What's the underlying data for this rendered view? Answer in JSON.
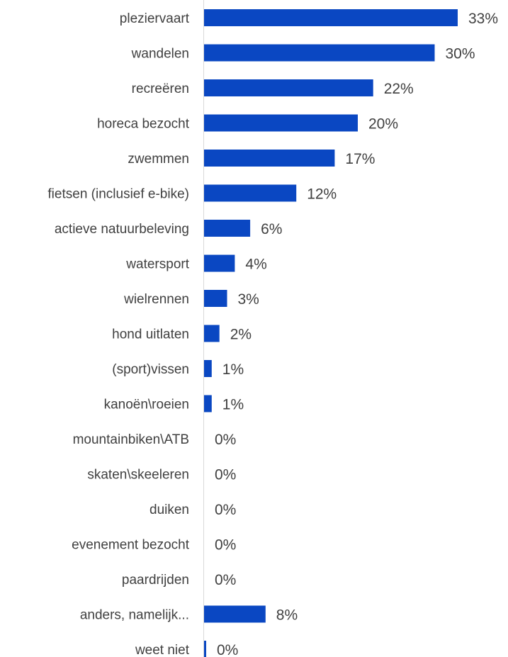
{
  "chart_data": {
    "type": "bar",
    "orientation": "horizontal",
    "bar_color": "#0a47c2",
    "axis_color": "#d9d9d9",
    "label_color": "#404040",
    "value_suffix": "%",
    "categories": [
      "pleziervaart",
      "wandelen",
      "recreëren",
      "horeca bezocht",
      "zwemmen",
      "fietsen (inclusief e-bike)",
      "actieve natuurbeleving",
      "watersport",
      "wielrennen",
      "hond uitlaten",
      "(sport)vissen",
      "kanoën\\roeien",
      "mountainbiken\\ATB",
      "skaten\\skeeleren",
      "duiken",
      "evenement bezocht",
      "paardrijden",
      "anders, namelijk...",
      "weet niet"
    ],
    "values": [
      33,
      30,
      22,
      20,
      17,
      12,
      6,
      4,
      3,
      2,
      1,
      1,
      0,
      0,
      0,
      0,
      0,
      8,
      0
    ],
    "value_labels": [
      "33%",
      "30%",
      "22%",
      "20%",
      "17%",
      "12%",
      "6%",
      "4%",
      "3%",
      "2%",
      "1%",
      "1%",
      "0%",
      "0%",
      "0%",
      "0%",
      "0%",
      "8%",
      "0%"
    ],
    "xlim": [
      0,
      33
    ]
  }
}
